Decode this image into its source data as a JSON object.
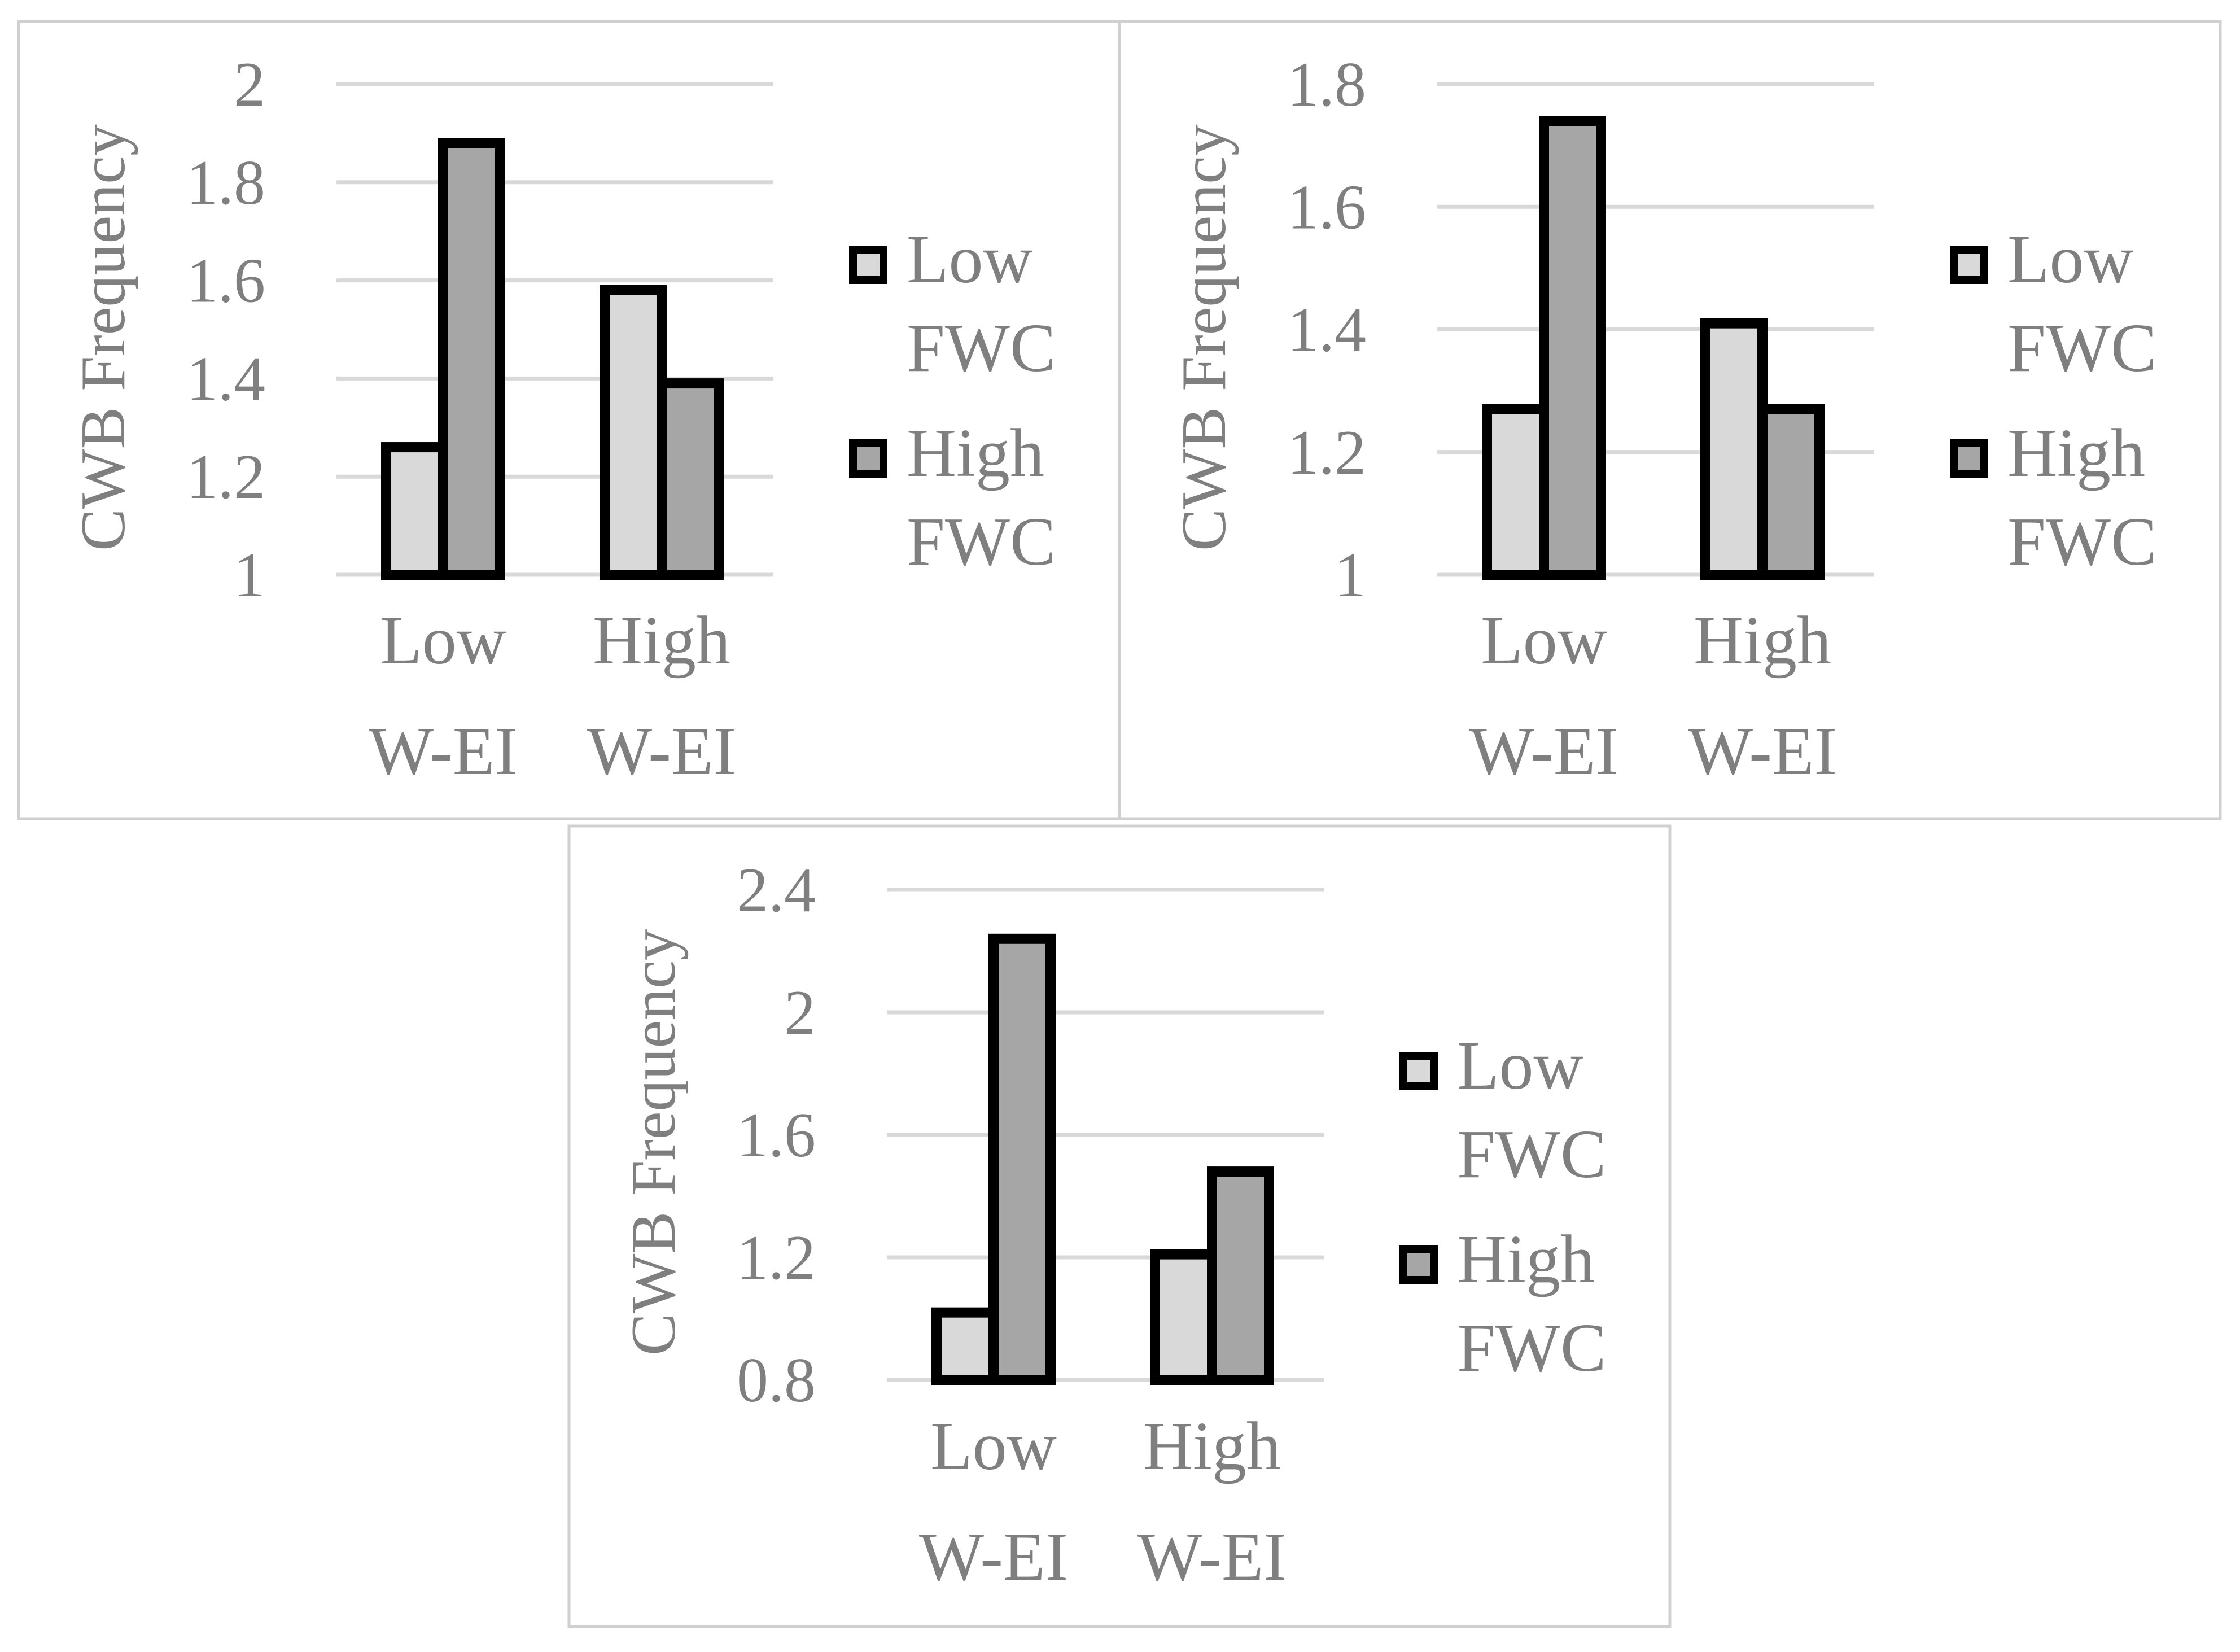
{
  "colors": {
    "low_fwc": "#d9d9d9",
    "high_fwc": "#a6a6a6",
    "text": "#7f7f7f",
    "grid": "#d9d9d9",
    "outline": "#000000"
  },
  "chart_data": [
    {
      "type": "bar",
      "ylabel": "CWB Frequency",
      "categories": [
        [
          "Low",
          "W-EI"
        ],
        [
          "High",
          "W-EI"
        ]
      ],
      "ylim": [
        1,
        2
      ],
      "yticks": [
        1,
        1.2,
        1.4,
        1.6,
        1.8,
        2
      ],
      "ytick_labels": [
        "1",
        "1.2",
        "1.4",
        "1.6",
        "1.8",
        "2"
      ],
      "series": [
        {
          "name": [
            "Low",
            "FWC"
          ],
          "values": [
            1.26,
            1.58
          ]
        },
        {
          "name": [
            "High",
            "FWC"
          ],
          "values": [
            1.88,
            1.39
          ]
        }
      ]
    },
    {
      "type": "bar",
      "ylabel": "CWB Frequency",
      "categories": [
        [
          "Low",
          "W-EI"
        ],
        [
          "High",
          "W-EI"
        ]
      ],
      "ylim": [
        1,
        1.8
      ],
      "yticks": [
        1,
        1.2,
        1.4,
        1.6,
        1.8
      ],
      "ytick_labels": [
        "1",
        "1.2",
        "1.4",
        "1.6",
        "1.8"
      ],
      "series": [
        {
          "name": [
            "Low",
            "FWC"
          ],
          "values": [
            1.27,
            1.41
          ]
        },
        {
          "name": [
            "High",
            "FWC"
          ],
          "values": [
            1.74,
            1.27
          ]
        }
      ]
    },
    {
      "type": "bar",
      "ylabel": "CWB Frequency",
      "categories": [
        [
          "Low",
          "W-EI"
        ],
        [
          "High",
          "W-EI"
        ]
      ],
      "ylim": [
        0.8,
        2.4
      ],
      "yticks": [
        0.8,
        1.2,
        1.6,
        2,
        2.4
      ],
      "ytick_labels": [
        "0.8",
        "1.2",
        "1.6",
        "2",
        "2.4"
      ],
      "series": [
        {
          "name": [
            "Low",
            "FWC"
          ],
          "values": [
            1.02,
            1.21
          ]
        },
        {
          "name": [
            "High",
            "FWC"
          ],
          "values": [
            2.24,
            1.48
          ]
        }
      ]
    }
  ]
}
